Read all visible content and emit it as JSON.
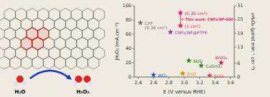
{
  "chart_data": {
    "type": "scatter",
    "marker": "star",
    "xlabel": "E (V versus RHE)",
    "ylabel": "jH₂O₂ (mA cm⁻²)",
    "y2label": "vH₂O₂ (μmol min⁻¹ cm⁻²)",
    "x": [
      2.43,
      2.82,
      2.6,
      2.98,
      3.06,
      3.22,
      3.33,
      3.48,
      2.95,
      2.95
    ],
    "values": [
      76,
      63,
      3,
      5,
      23,
      16,
      2,
      20,
      90,
      72
    ],
    "colors": [
      "#7a6a7a",
      "#9933bb",
      "#2255cc",
      "#dd8800",
      "#228822",
      "#228822",
      "#cc4444",
      "#cc2255",
      "#ee1177",
      "#ee1177"
    ],
    "point_labels": [
      [
        "CPF",
        "(0.36 cm²)"
      ],
      [
        "CNFs/NF@PTFE"
      ],
      [
        "WO₃"
      ],
      [
        "ZnO"
      ],
      [
        "BDD"
      ],
      [
        "CaSnO₃"
      ],
      [
        "SnO₂"
      ],
      [
        "BiVO₄"
      ],
      [
        "(0.36 cm²)"
      ],
      [
        "(1 cm²)"
      ]
    ],
    "annotations": [
      "H₂O",
      "H₂O₂",
      "This work: CNFs/NF-600"
    ],
    "xlim": [
      2.35,
      3.65
    ],
    "ylim": [
      0,
      100
    ],
    "y2lim": [
      0,
      31
    ],
    "xticks": [
      2.4,
      2.6,
      2.8,
      3.0,
      3.2,
      3.4,
      3.6
    ],
    "yticks": [
      0,
      20,
      40,
      60,
      80,
      100
    ],
    "y2ticks": [
      0,
      6,
      13,
      19,
      25,
      31
    ]
  }
}
